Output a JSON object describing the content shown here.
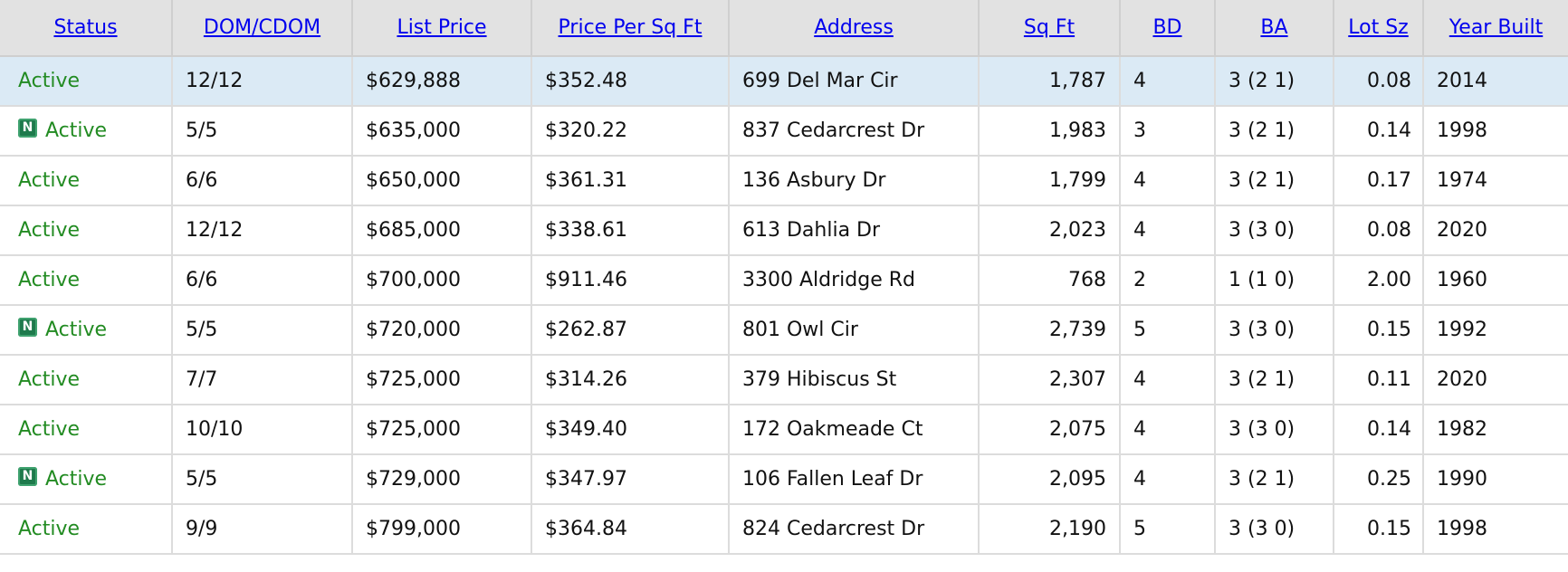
{
  "columns": [
    "Status",
    "DOM/CDOM",
    "List Price",
    "Price Per Sq Ft",
    "Address",
    "Sq Ft",
    "BD",
    "BA",
    "Lot Sz",
    "Year Built"
  ],
  "rows": [
    {
      "status": "Active",
      "new": false,
      "dom": "12/12",
      "price": "$629,888",
      "ppsf": "$352.48",
      "address": "699 Del Mar Cir",
      "sqft": "1,787",
      "bd": "4",
      "ba": "3 (2 1)",
      "lot": "0.08",
      "year": "2014"
    },
    {
      "status": "Active",
      "new": true,
      "badge": "N",
      "dom": "5/5",
      "price": "$635,000",
      "ppsf": "$320.22",
      "address": "837 Cedarcrest Dr",
      "sqft": "1,983",
      "bd": "3",
      "ba": "3 (2 1)",
      "lot": "0.14",
      "year": "1998"
    },
    {
      "status": "Active",
      "new": false,
      "dom": "6/6",
      "price": "$650,000",
      "ppsf": "$361.31",
      "address": "136 Asbury Dr",
      "sqft": "1,799",
      "bd": "4",
      "ba": "3 (2 1)",
      "lot": "0.17",
      "year": "1974"
    },
    {
      "status": "Active",
      "new": false,
      "dom": "12/12",
      "price": "$685,000",
      "ppsf": "$338.61",
      "address": "613 Dahlia Dr",
      "sqft": "2,023",
      "bd": "4",
      "ba": "3 (3 0)",
      "lot": "0.08",
      "year": "2020"
    },
    {
      "status": "Active",
      "new": false,
      "dom": "6/6",
      "price": "$700,000",
      "ppsf": "$911.46",
      "address": "3300 Aldridge Rd",
      "sqft": "768",
      "bd": "2",
      "ba": "1 (1 0)",
      "lot": "2.00",
      "year": "1960"
    },
    {
      "status": "Active",
      "new": true,
      "badge": "N",
      "dom": "5/5",
      "price": "$720,000",
      "ppsf": "$262.87",
      "address": "801 Owl Cir",
      "sqft": "2,739",
      "bd": "5",
      "ba": "3 (3 0)",
      "lot": "0.15",
      "year": "1992"
    },
    {
      "status": "Active",
      "new": false,
      "dom": "7/7",
      "price": "$725,000",
      "ppsf": "$314.26",
      "address": "379 Hibiscus St",
      "sqft": "2,307",
      "bd": "4",
      "ba": "3 (2 1)",
      "lot": "0.11",
      "year": "2020"
    },
    {
      "status": "Active",
      "new": false,
      "dom": "10/10",
      "price": "$725,000",
      "ppsf": "$349.40",
      "address": "172 Oakmeade Ct",
      "sqft": "2,075",
      "bd": "4",
      "ba": "3 (3 0)",
      "lot": "0.14",
      "year": "1982"
    },
    {
      "status": "Active",
      "new": true,
      "badge": "N",
      "dom": "5/5",
      "price": "$729,000",
      "ppsf": "$347.97",
      "address": "106 Fallen Leaf Dr",
      "sqft": "2,095",
      "bd": "4",
      "ba": "3 (2 1)",
      "lot": "0.25",
      "year": "1990"
    },
    {
      "status": "Active",
      "new": false,
      "dom": "9/9",
      "price": "$799,000",
      "ppsf": "$364.84",
      "address": "824 Cedarcrest Dr",
      "sqft": "2,190",
      "bd": "5",
      "ba": "3 (3 0)",
      "lot": "0.15",
      "year": "1998"
    }
  ],
  "colors": {
    "header_link": "#0000ee",
    "status_active": "#228b22",
    "selected_row": "#dbeaf5",
    "new_badge": "#1e7a4c"
  },
  "icons": {
    "new_badge": "new-listing-icon"
  }
}
